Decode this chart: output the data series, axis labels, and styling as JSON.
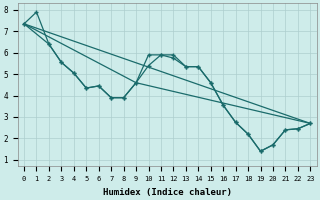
{
  "xlabel": "Humidex (Indice chaleur)",
  "xlim_min": -0.5,
  "xlim_max": 23.5,
  "ylim_min": 0.7,
  "ylim_max": 8.3,
  "xticks": [
    0,
    1,
    2,
    3,
    4,
    5,
    6,
    7,
    8,
    9,
    10,
    11,
    12,
    13,
    14,
    15,
    16,
    17,
    18,
    19,
    20,
    21,
    22,
    23
  ],
  "yticks": [
    1,
    2,
    3,
    4,
    5,
    6,
    7,
    8
  ],
  "bg_color": "#ceecea",
  "line_color": "#1a6b6b",
  "grid_color": "#aecece",
  "line1_x": [
    0,
    1,
    2,
    3,
    4,
    5,
    6,
    7,
    8,
    9,
    10,
    11,
    12,
    13,
    14,
    15,
    16,
    17,
    18,
    19,
    20,
    21,
    22,
    23
  ],
  "line1_y": [
    7.35,
    7.9,
    6.4,
    5.55,
    5.05,
    4.35,
    4.45,
    3.9,
    3.9,
    4.6,
    5.9,
    5.9,
    5.75,
    5.35,
    5.35,
    4.6,
    3.55,
    2.75,
    2.2,
    1.4,
    1.7,
    2.4,
    2.45,
    2.7
  ],
  "line2_x": [
    0,
    2,
    3,
    4,
    5,
    6,
    7,
    8,
    9,
    10,
    11,
    12,
    13,
    14,
    15,
    16,
    17,
    18,
    19,
    20,
    21,
    22,
    23
  ],
  "line2_y": [
    7.35,
    6.4,
    5.55,
    5.05,
    4.35,
    4.45,
    3.9,
    3.9,
    4.6,
    5.4,
    5.9,
    5.9,
    5.35,
    5.35,
    4.6,
    3.55,
    2.75,
    2.2,
    1.4,
    1.7,
    2.4,
    2.45,
    2.7
  ],
  "line3_x": [
    0,
    23
  ],
  "line3_y": [
    7.35,
    2.7
  ],
  "line4_x": [
    0,
    9,
    23
  ],
  "line4_y": [
    7.35,
    4.6,
    2.7
  ]
}
